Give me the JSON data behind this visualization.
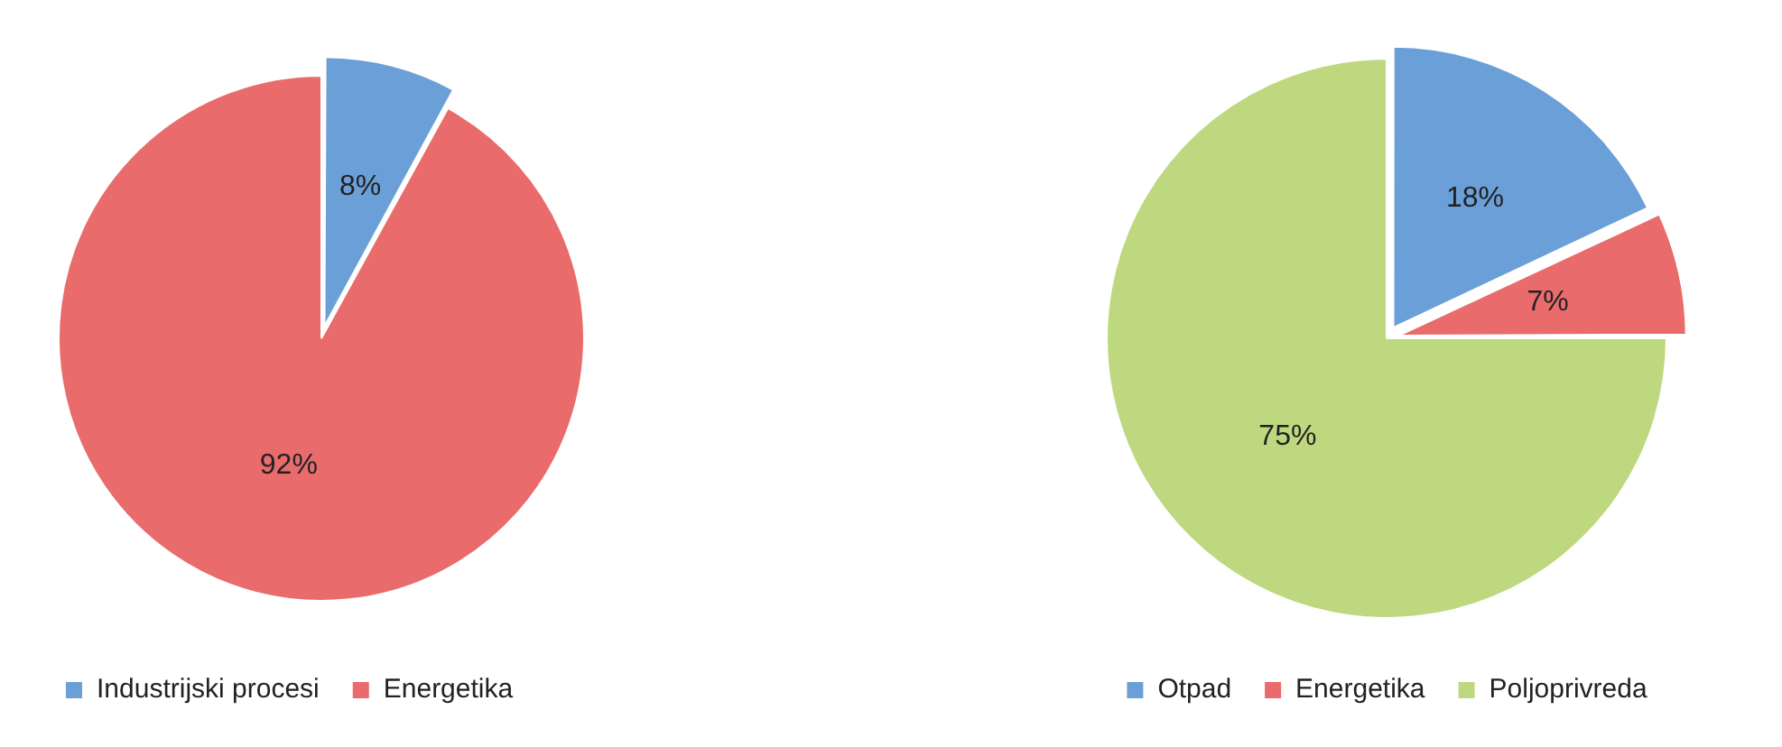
{
  "chart_data": [
    {
      "type": "pie",
      "categories": [
        "Industrijski procesi",
        "Energetika"
      ],
      "values": [
        8,
        92
      ],
      "colors": [
        "#6b9fd7",
        "#e96b6b"
      ],
      "value_labels": [
        "8%",
        "92%"
      ],
      "legend": "bottom left"
    },
    {
      "type": "pie",
      "categories": [
        "Otpad",
        "Energetika",
        "Poljoprivreda"
      ],
      "values": [
        18,
        7,
        75
      ],
      "colors": [
        "#6b9fd7",
        "#e96b6b",
        "#bdd87e"
      ],
      "value_labels": [
        "18%",
        "7%",
        "75%"
      ],
      "legend": "bottom"
    }
  ]
}
